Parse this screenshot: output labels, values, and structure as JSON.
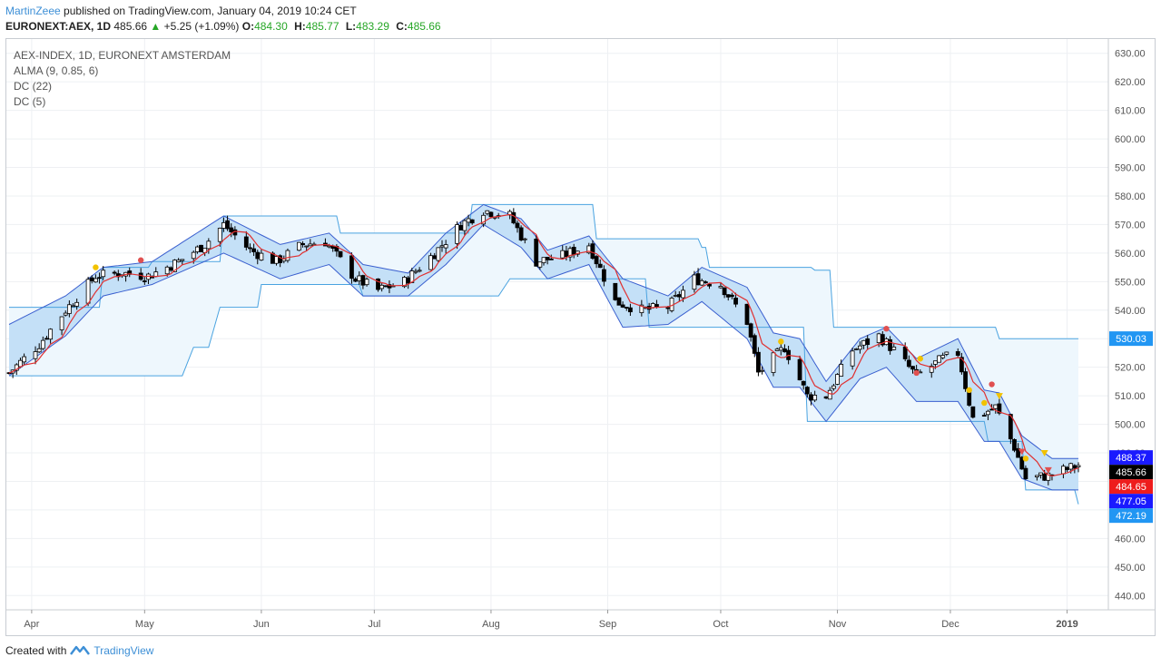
{
  "header": {
    "author": "MartinZeee",
    "published": "published on TradingView.com, January 04, 2019 10:24 CET",
    "symbol": "EURONEXT:AEX, 1D",
    "last": "485.66",
    "change": "+5.25 (+1.09%)",
    "ohlc": [
      {
        "k": "O:",
        "v": "484.30"
      },
      {
        "k": "H:",
        "v": "485.77"
      },
      {
        "k": "L:",
        "v": "483.29"
      },
      {
        "k": "C:",
        "v": "485.66"
      }
    ]
  },
  "legend": {
    "title": "AEX-INDEX, 1D, EURONEXT AMSTERDAM",
    "items": [
      "ALMA (9, 0.85, 6)",
      "DC (22)",
      "DC (5)"
    ]
  },
  "footer": {
    "created": "Created with",
    "brand": "TradingView"
  },
  "colors": {
    "up_fill": "#ffffff",
    "down_fill": "#000000",
    "alma": "#e03030",
    "dc22": "#4aa3e0",
    "dc5": "#3a5fcf",
    "dc22_fill": "#eef7fd",
    "dc5_fill": "#c4e0f7"
  },
  "chart_data": {
    "type": "candlestick",
    "x_range": [
      "2018-03-26",
      "2019-01-04"
    ],
    "ylim": [
      435,
      635
    ],
    "y_ticks": [
      440,
      450,
      460,
      470,
      480,
      490,
      500,
      510,
      520,
      530,
      540,
      550,
      560,
      570,
      580,
      590,
      600,
      610,
      620,
      630
    ],
    "x_ticks": [
      {
        "label": "Apr",
        "date": "2018-04-01"
      },
      {
        "label": "May",
        "date": "2018-05-01"
      },
      {
        "label": "Jun",
        "date": "2018-06-01"
      },
      {
        "label": "Jul",
        "date": "2018-07-01"
      },
      {
        "label": "Aug",
        "date": "2018-08-01"
      },
      {
        "label": "Sep",
        "date": "2018-09-01"
      },
      {
        "label": "Oct",
        "date": "2018-10-01"
      },
      {
        "label": "Nov",
        "date": "2018-11-01"
      },
      {
        "label": "Dec",
        "date": "2018-12-01"
      },
      {
        "label": "2019",
        "date": "2019-01-01"
      }
    ],
    "close_path": [
      [
        "2018-03-26",
        518
      ],
      [
        "2018-04-03",
        528
      ],
      [
        "2018-04-10",
        540
      ],
      [
        "2018-04-18",
        552
      ],
      [
        "2018-04-25",
        553
      ],
      [
        "2018-05-02",
        552
      ],
      [
        "2018-05-10",
        557
      ],
      [
        "2018-05-17",
        563
      ],
      [
        "2018-05-22",
        570
      ],
      [
        "2018-05-29",
        561
      ],
      [
        "2018-06-05",
        557
      ],
      [
        "2018-06-12",
        563
      ],
      [
        "2018-06-18",
        564
      ],
      [
        "2018-06-26",
        551
      ],
      [
        "2018-07-02",
        547
      ],
      [
        "2018-07-09",
        550
      ],
      [
        "2018-07-17",
        560
      ],
      [
        "2018-07-24",
        570
      ],
      [
        "2018-07-30",
        575
      ],
      [
        "2018-08-06",
        573
      ],
      [
        "2018-08-13",
        557
      ],
      [
        "2018-08-20",
        559
      ],
      [
        "2018-08-27",
        563
      ],
      [
        "2018-09-03",
        543
      ],
      [
        "2018-09-10",
        540
      ],
      [
        "2018-09-17",
        541
      ],
      [
        "2018-09-24",
        551
      ],
      [
        "2018-10-01",
        549
      ],
      [
        "2018-10-08",
        536
      ],
      [
        "2018-10-11",
        518
      ],
      [
        "2018-10-18",
        527
      ],
      [
        "2018-10-24",
        510
      ],
      [
        "2018-10-29",
        510
      ],
      [
        "2018-11-05",
        526
      ],
      [
        "2018-11-12",
        531
      ],
      [
        "2018-11-16",
        526
      ],
      [
        "2018-11-22",
        517
      ],
      [
        "2018-11-29",
        523
      ],
      [
        "2018-12-03",
        525
      ],
      [
        "2018-12-07",
        502
      ],
      [
        "2018-12-13",
        506
      ],
      [
        "2018-12-18",
        492
      ],
      [
        "2018-12-21",
        481
      ],
      [
        "2018-12-27",
        482
      ],
      [
        "2019-01-04",
        485.66
      ]
    ],
    "dc22_upper": [
      [
        "2018-03-26",
        541
      ],
      [
        "2018-04-20",
        555
      ],
      [
        "2018-05-03",
        557
      ],
      [
        "2018-05-22",
        573
      ],
      [
        "2018-06-20",
        573
      ],
      [
        "2018-06-22",
        567
      ],
      [
        "2018-07-20",
        567
      ],
      [
        "2018-07-27",
        577
      ],
      [
        "2018-08-27",
        577
      ],
      [
        "2018-08-29",
        565
      ],
      [
        "2018-09-26",
        562
      ],
      [
        "2018-09-28",
        555
      ],
      [
        "2018-10-26",
        554
      ],
      [
        "2018-10-31",
        534
      ],
      [
        "2018-12-12",
        534
      ],
      [
        "2018-12-14",
        530
      ],
      [
        "2019-01-04",
        530
      ]
    ],
    "dc22_lower": [
      [
        "2018-03-26",
        517
      ],
      [
        "2018-05-07",
        517
      ],
      [
        "2018-05-14",
        527
      ],
      [
        "2018-05-21",
        541
      ],
      [
        "2018-06-01",
        549
      ],
      [
        "2018-06-18",
        549
      ],
      [
        "2018-06-28",
        545
      ],
      [
        "2018-07-25",
        545
      ],
      [
        "2018-08-06",
        551
      ],
      [
        "2018-09-04",
        551
      ],
      [
        "2018-09-12",
        534
      ],
      [
        "2018-10-10",
        534
      ],
      [
        "2018-10-24",
        501
      ],
      [
        "2018-12-07",
        501
      ],
      [
        "2018-12-11",
        494
      ],
      [
        "2018-12-18",
        494
      ],
      [
        "2018-12-21",
        477
      ],
      [
        "2019-01-04",
        472
      ]
    ],
    "dc5_upper": [
      [
        "2018-03-26",
        535
      ],
      [
        "2018-04-10",
        545
      ],
      [
        "2018-04-20",
        555
      ],
      [
        "2018-05-03",
        557
      ],
      [
        "2018-05-22",
        573
      ],
      [
        "2018-06-06",
        563
      ],
      [
        "2018-06-19",
        567
      ],
      [
        "2018-06-28",
        556
      ],
      [
        "2018-07-10",
        553
      ],
      [
        "2018-07-20",
        567
      ],
      [
        "2018-07-30",
        577
      ],
      [
        "2018-08-09",
        572
      ],
      [
        "2018-08-16",
        561
      ],
      [
        "2018-08-27",
        566
      ],
      [
        "2018-09-05",
        551
      ],
      [
        "2018-09-17",
        545
      ],
      [
        "2018-09-26",
        555
      ],
      [
        "2018-10-08",
        548
      ],
      [
        "2018-10-15",
        532
      ],
      [
        "2018-10-22",
        530
      ],
      [
        "2018-10-29",
        515
      ],
      [
        "2018-11-07",
        530
      ],
      [
        "2018-11-14",
        534
      ],
      [
        "2018-11-22",
        523
      ],
      [
        "2018-12-03",
        530
      ],
      [
        "2018-12-10",
        512
      ],
      [
        "2018-12-14",
        511
      ],
      [
        "2018-12-20",
        496
      ],
      [
        "2018-12-28",
        488
      ],
      [
        "2019-01-04",
        488
      ]
    ],
    "dc5_lower": [
      [
        "2018-03-26",
        517
      ],
      [
        "2018-04-10",
        531
      ],
      [
        "2018-04-20",
        545
      ],
      [
        "2018-05-03",
        549
      ],
      [
        "2018-05-22",
        560
      ],
      [
        "2018-06-06",
        551
      ],
      [
        "2018-06-19",
        556
      ],
      [
        "2018-06-28",
        545
      ],
      [
        "2018-07-10",
        545
      ],
      [
        "2018-07-20",
        556
      ],
      [
        "2018-07-30",
        570
      ],
      [
        "2018-08-09",
        562
      ],
      [
        "2018-08-16",
        551
      ],
      [
        "2018-08-27",
        556
      ],
      [
        "2018-09-05",
        534
      ],
      [
        "2018-09-17",
        535
      ],
      [
        "2018-09-26",
        543
      ],
      [
        "2018-10-08",
        530
      ],
      [
        "2018-10-15",
        513
      ],
      [
        "2018-10-22",
        513
      ],
      [
        "2018-10-29",
        501
      ],
      [
        "2018-11-07",
        516
      ],
      [
        "2018-11-14",
        520
      ],
      [
        "2018-11-22",
        508
      ],
      [
        "2018-12-03",
        508
      ],
      [
        "2018-12-10",
        494
      ],
      [
        "2018-12-14",
        494
      ],
      [
        "2018-12-20",
        481
      ],
      [
        "2018-12-28",
        477
      ],
      [
        "2019-01-04",
        477
      ]
    ],
    "markers": [
      {
        "date": "2018-04-18",
        "value": 555,
        "shape": "dot",
        "color": "#f2c200"
      },
      {
        "date": "2018-04-30",
        "value": 557.5,
        "shape": "dot",
        "color": "#e05050"
      },
      {
        "date": "2018-10-17",
        "value": 529,
        "shape": "dot",
        "color": "#f2c200"
      },
      {
        "date": "2018-11-14",
        "value": 533.5,
        "shape": "dot",
        "color": "#e05050"
      },
      {
        "date": "2018-11-22",
        "value": 518,
        "shape": "dot",
        "color": "#e05050"
      },
      {
        "date": "2018-11-23",
        "value": 523,
        "shape": "dot",
        "color": "#f2c200"
      },
      {
        "date": "2018-12-06",
        "value": 512,
        "shape": "dot",
        "color": "#f2c200"
      },
      {
        "date": "2018-12-10",
        "value": 507.5,
        "shape": "dot",
        "color": "#f2c200"
      },
      {
        "date": "2018-12-12",
        "value": 514,
        "shape": "dot",
        "color": "#e05050"
      },
      {
        "date": "2018-12-14",
        "value": 510,
        "shape": "tri-down",
        "color": "#f2c200"
      },
      {
        "date": "2018-12-20",
        "value": 490.5,
        "shape": "tri-down",
        "color": "#e05050"
      },
      {
        "date": "2018-12-21",
        "value": 488,
        "shape": "dot",
        "color": "#f2c200"
      },
      {
        "date": "2018-12-26",
        "value": 490,
        "shape": "tri-down",
        "color": "#f2c200"
      },
      {
        "date": "2018-12-27",
        "value": 484,
        "shape": "tri-down",
        "color": "#e05050"
      }
    ],
    "price_labels": [
      {
        "value": 530.03,
        "label": "530.03",
        "bg": "#2196f3",
        "fg": "#ffffff"
      },
      {
        "value": 488.37,
        "label": "488.37",
        "bg": "#1a1aff",
        "fg": "#ffffff"
      },
      {
        "value": 485.66,
        "label": "485.66",
        "bg": "#000000",
        "fg": "#ffffff"
      },
      {
        "value": 484.65,
        "label": "484.65",
        "bg": "#ee1c1c",
        "fg": "#ffffff"
      },
      {
        "value": 477.05,
        "label": "477.05",
        "bg": "#1a1aff",
        "fg": "#ffffff"
      },
      {
        "value": 472.19,
        "label": "472.19",
        "bg": "#2196f3",
        "fg": "#ffffff"
      }
    ]
  }
}
